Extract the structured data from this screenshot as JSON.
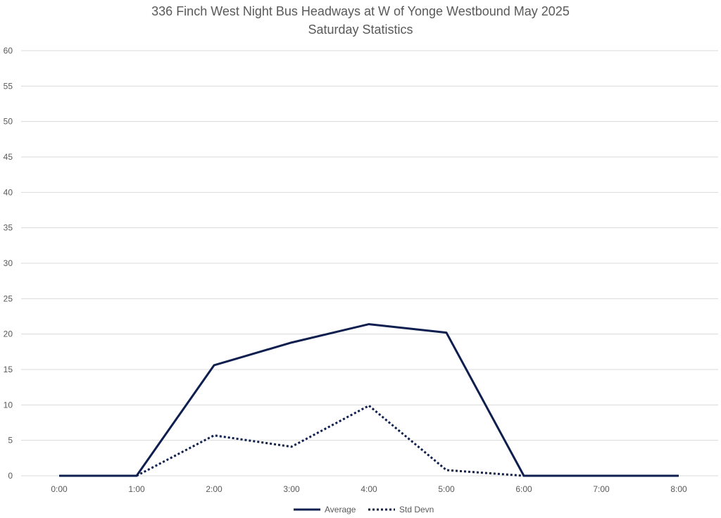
{
  "chart_data": {
    "type": "line",
    "title": "336 Finch West Night Bus Headways at W of Yonge Westbound May 2025",
    "subtitle": "Saturday Statistics",
    "xlabel": "",
    "ylabel": "",
    "categories": [
      "0:00",
      "1:00",
      "2:00",
      "3:00",
      "4:00",
      "5:00",
      "6:00",
      "7:00",
      "8:00"
    ],
    "ylim": [
      0,
      60
    ],
    "yticks": [
      0,
      5,
      10,
      15,
      20,
      25,
      30,
      35,
      40,
      45,
      50,
      55,
      60
    ],
    "grid": true,
    "legend_position": "bottom",
    "series": [
      {
        "name": "Average",
        "style": "solid",
        "color": "#0e1f4f",
        "values": [
          0,
          0,
          15.6,
          18.8,
          21.4,
          20.2,
          0,
          0,
          0
        ]
      },
      {
        "name": "Std Devn",
        "style": "dotted",
        "color": "#0e1f4f",
        "values": [
          null,
          0,
          5.7,
          4.1,
          9.9,
          0.8,
          0,
          null,
          null
        ]
      }
    ]
  }
}
